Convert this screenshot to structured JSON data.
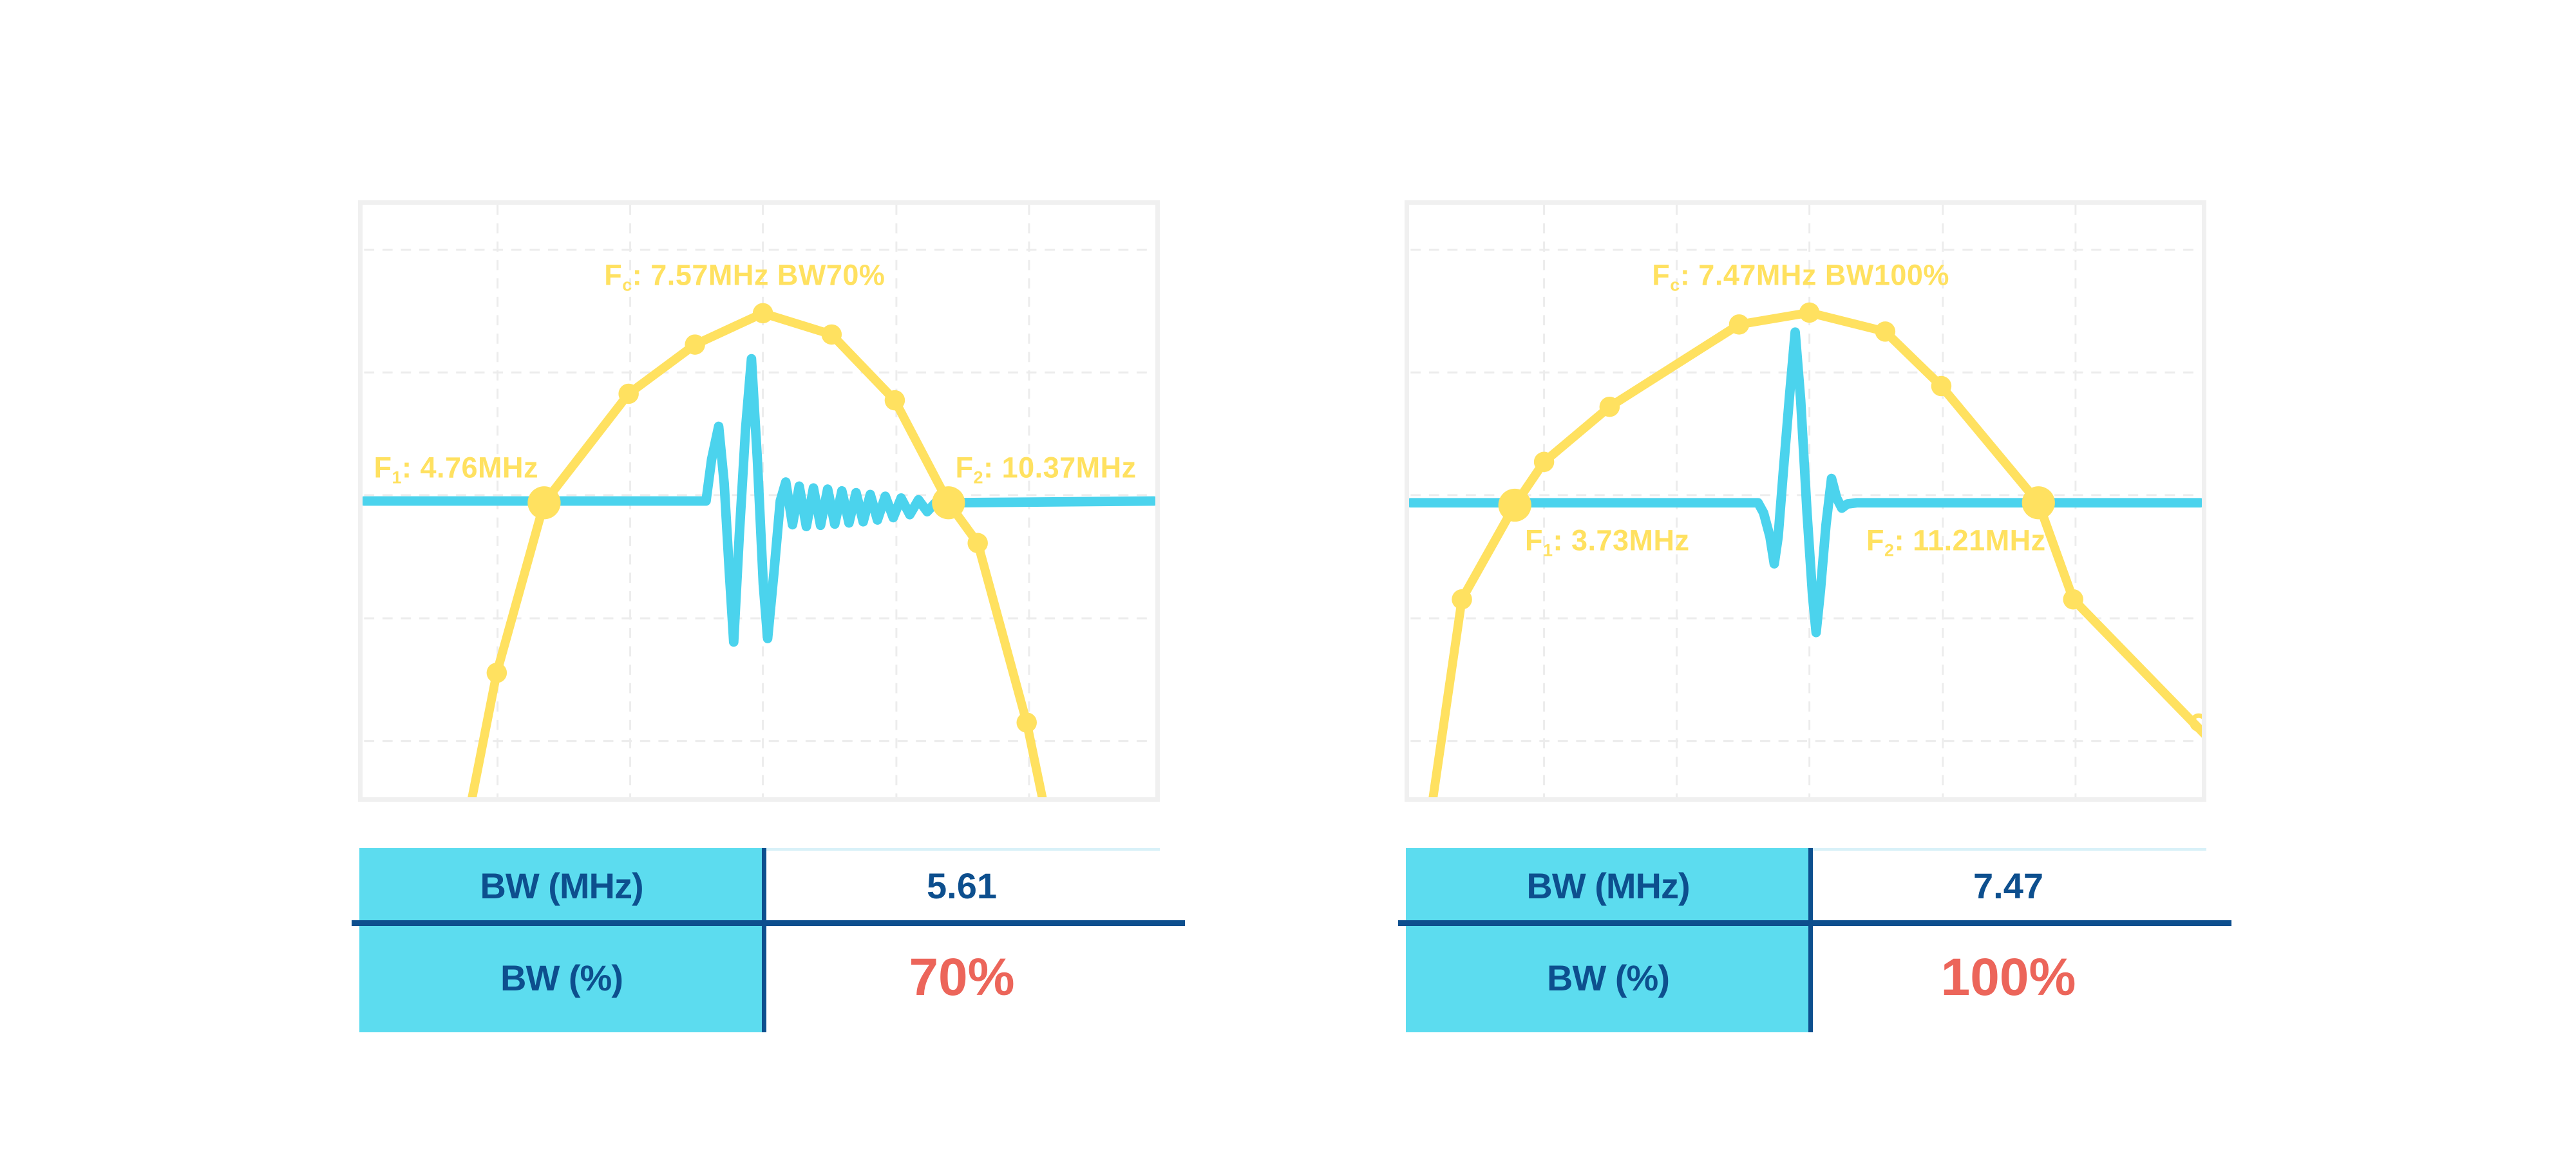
{
  "colors": {
    "spectrum_yellow": "#FFE160",
    "pulse_cyan": "#4BD3ED",
    "table_header_cyan": "#5CDCEF",
    "navy_text": "#0D4F8E",
    "red_accent": "#EC655A",
    "grid_gray": "#ececec",
    "panel_border_gray": "#f0f0f0",
    "table_topline": "#d8f1f8"
  },
  "chart_data": [
    {
      "type": "line",
      "name": "pulse-spectrum-bw70",
      "fc_mhz": 7.57,
      "f1_mhz": 4.76,
      "f2_mhz": 10.37,
      "bw_mhz": 5.61,
      "bw_percent": 70,
      "annotations": {
        "fc": {
          "base": "F",
          "sub": "c",
          "text": ": 7.57MHz BW70%",
          "x": 0.482,
          "y": 0.122
        },
        "f1": {
          "base": "F",
          "sub": "1",
          "text": ": 4.76MHz",
          "x": 0.118,
          "y": 0.447
        },
        "f2": {
          "base": "F",
          "sub": "2",
          "text": ": 10.37MHz",
          "x": 0.862,
          "y": 0.447
        }
      },
      "grid": {
        "vertical": [
          0.169,
          0.337,
          0.505,
          0.674,
          0.842
        ],
        "horizontal": [
          0.076,
          0.283,
          0.49,
          0.698,
          0.905
        ],
        "color": "#ececec",
        "dash": "16 13",
        "width": 3
      },
      "series": [
        {
          "name": "spectrum",
          "color": "#FFE160",
          "width": 14,
          "points": [
            [
              0.128,
              1.06
            ],
            [
              0.168,
              0.79
            ],
            [
              0.228,
              0.503
            ],
            [
              0.335,
              0.319
            ],
            [
              0.419,
              0.236
            ],
            [
              0.505,
              0.183
            ],
            [
              0.592,
              0.219
            ],
            [
              0.672,
              0.33
            ],
            [
              0.74,
              0.503
            ],
            [
              0.777,
              0.571
            ],
            [
              0.839,
              0.874
            ],
            [
              0.868,
              1.06
            ]
          ]
        },
        {
          "name": "pulse",
          "color": "#4BD3ED",
          "width": 15,
          "points": [
            [
              0,
              0.5
            ],
            [
              0.433,
              0.5
            ],
            [
              0.44,
              0.43
            ],
            [
              0.449,
              0.374
            ],
            [
              0.456,
              0.47
            ],
            [
              0.4625,
              0.62
            ],
            [
              0.468,
              0.738
            ],
            [
              0.475,
              0.56
            ],
            [
              0.483,
              0.38
            ],
            [
              0.4905,
              0.26
            ],
            [
              0.498,
              0.43
            ],
            [
              0.5055,
              0.64
            ],
            [
              0.511,
              0.732
            ],
            [
              0.519,
              0.62
            ],
            [
              0.527,
              0.5
            ],
            [
              0.534,
              0.468
            ],
            [
              0.5425,
              0.54
            ],
            [
              0.551,
              0.475
            ],
            [
              0.56,
              0.543
            ],
            [
              0.569,
              0.478
            ],
            [
              0.578,
              0.541
            ],
            [
              0.587,
              0.48
            ],
            [
              0.596,
              0.539
            ],
            [
              0.605,
              0.483
            ],
            [
              0.614,
              0.537
            ],
            [
              0.623,
              0.486
            ],
            [
              0.632,
              0.535
            ],
            [
              0.641,
              0.489
            ],
            [
              0.65,
              0.532
            ],
            [
              0.66,
              0.492
            ],
            [
              0.67,
              0.528
            ],
            [
              0.68,
              0.495
            ],
            [
              0.691,
              0.523
            ],
            [
              0.702,
              0.498
            ],
            [
              0.713,
              0.518
            ],
            [
              0.724,
              0.502
            ],
            [
              0.74,
              0.503
            ],
            [
              1,
              0.5
            ]
          ]
        }
      ],
      "markers": {
        "regular": [
          [
            0.168,
            0.79
          ],
          [
            0.335,
            0.319
          ],
          [
            0.419,
            0.236
          ],
          [
            0.505,
            0.183
          ],
          [
            0.592,
            0.219
          ],
          [
            0.672,
            0.33
          ],
          [
            0.777,
            0.571
          ],
          [
            0.839,
            0.874
          ]
        ],
        "bandwidth": [
          [
            0.228,
            0.503
          ],
          [
            0.74,
            0.503
          ]
        ],
        "open_end": []
      },
      "marker_color": "#FFE160",
      "table": {
        "rows": [
          {
            "label": "BW (MHz)",
            "value": "5.61"
          },
          {
            "label": "BW (%)",
            "value": "70%"
          }
        ]
      }
    },
    {
      "type": "line",
      "name": "pulse-spectrum-bw100",
      "fc_mhz": 7.47,
      "f1_mhz": 3.73,
      "f2_mhz": 11.21,
      "bw_mhz": 7.47,
      "bw_percent": 100,
      "annotations": {
        "fc": {
          "base": "F",
          "sub": "c",
          "text": ": 7.47MHz BW100%",
          "x": 0.494,
          "y": 0.122
        },
        "f1": {
          "base": "F",
          "sub": "1",
          "text": ": 3.73MHz",
          "x": 0.25,
          "y": 0.57
        },
        "f2": {
          "base": "F",
          "sub": "2",
          "text": ": 11.21MHz",
          "x": 0.69,
          "y": 0.57
        }
      },
      "grid": {
        "vertical": [
          0.169,
          0.337,
          0.505,
          0.674,
          0.842
        ],
        "horizontal": [
          0.076,
          0.283,
          0.49,
          0.698,
          0.905
        ],
        "color": "#ececec",
        "dash": "16 13",
        "width": 3
      },
      "series": [
        {
          "name": "spectrum",
          "color": "#FFE160",
          "width": 14,
          "points": [
            [
              0.022,
              1.06
            ],
            [
              0.065,
              0.666
            ],
            [
              0.132,
              0.507
            ],
            [
              0.169,
              0.434
            ],
            [
              0.252,
              0.341
            ],
            [
              0.416,
              0.202
            ],
            [
              0.505,
              0.182
            ],
            [
              0.601,
              0.214
            ],
            [
              0.672,
              0.306
            ],
            [
              0.795,
              0.503
            ],
            [
              0.839,
              0.666
            ],
            [
              1.01,
              0.9
            ]
          ]
        },
        {
          "name": "pulse",
          "color": "#4BD3ED",
          "width": 15,
          "points": [
            [
              0,
              0.503
            ],
            [
              0.44,
              0.503
            ],
            [
              0.447,
              0.52
            ],
            [
              0.455,
              0.56
            ],
            [
              0.4605,
              0.606
            ],
            [
              0.4655,
              0.56
            ],
            [
              0.472,
              0.45
            ],
            [
              0.48,
              0.32
            ],
            [
              0.487,
              0.215
            ],
            [
              0.494,
              0.33
            ],
            [
              0.502,
              0.52
            ],
            [
              0.509,
              0.66
            ],
            [
              0.5135,
              0.722
            ],
            [
              0.519,
              0.65
            ],
            [
              0.526,
              0.54
            ],
            [
              0.533,
              0.462
            ],
            [
              0.5395,
              0.495
            ],
            [
              0.546,
              0.512
            ],
            [
              0.553,
              0.505
            ],
            [
              0.565,
              0.503
            ],
            [
              1,
              0.503
            ]
          ]
        }
      ],
      "markers": {
        "regular": [
          [
            0.065,
            0.666
          ],
          [
            0.169,
            0.434
          ],
          [
            0.252,
            0.341
          ],
          [
            0.416,
            0.202
          ],
          [
            0.505,
            0.182
          ],
          [
            0.601,
            0.214
          ],
          [
            0.672,
            0.306
          ],
          [
            0.839,
            0.666
          ]
        ],
        "bandwidth": [
          [
            0.132,
            0.507
          ],
          [
            0.795,
            0.503
          ]
        ],
        "open_end": [
          [
            0.998,
            0.874
          ]
        ]
      },
      "marker_color": "#FFE160",
      "table": {
        "rows": [
          {
            "label": "BW (MHz)",
            "value": "7.47"
          },
          {
            "label": "BW (%)",
            "value": "100%"
          }
        ]
      }
    }
  ]
}
